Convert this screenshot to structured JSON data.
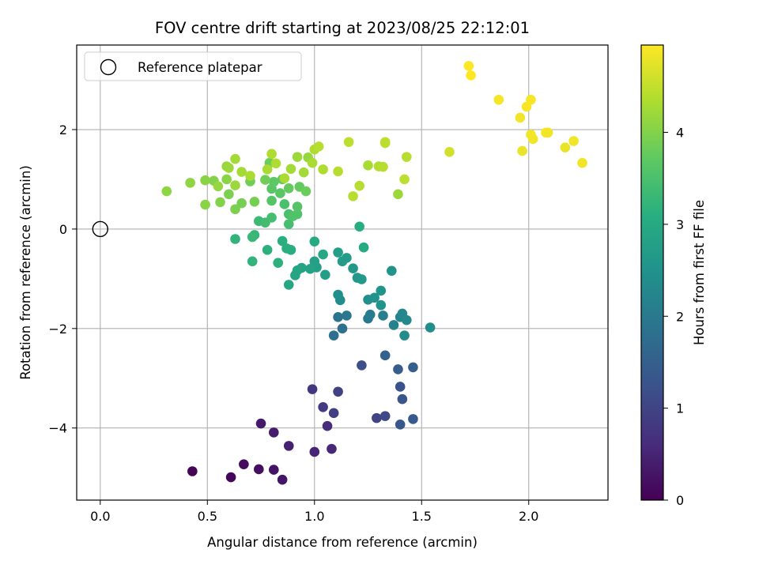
{
  "chart_data": {
    "type": "scatter",
    "title": "FOV centre drift starting at 2023/08/25 22:12:01",
    "xlabel": "Angular distance from reference (arcmin)",
    "ylabel": "Rotation from reference (arcmin)",
    "xlim": [
      -0.11,
      2.37
    ],
    "ylim": [
      -5.45,
      3.7
    ],
    "xticks": [
      0.0,
      0.5,
      1.0,
      1.5,
      2.0
    ],
    "xtick_labels": [
      "0.0",
      "0.5",
      "1.0",
      "1.5",
      "2.0"
    ],
    "yticks": [
      2,
      0,
      -2,
      -4
    ],
    "ytick_labels": [
      "2",
      "0",
      "−2",
      "−4"
    ],
    "grid": true,
    "legend": {
      "placement": "top-left",
      "entries": [
        "Reference platepar"
      ]
    },
    "reference_point": {
      "x": 0.0,
      "y": 0.0
    },
    "colorbar": {
      "label": "Hours from first FF file",
      "colormap": "viridis",
      "range": [
        0,
        4.95
      ],
      "ticks": [
        0,
        1,
        2,
        3,
        4
      ],
      "tick_labels": [
        "0",
        "1",
        "2",
        "3",
        "4"
      ]
    },
    "points": [
      [
        0.43,
        -4.87,
        0.05
      ],
      [
        0.61,
        -4.99,
        0.1
      ],
      [
        0.67,
        -4.73,
        0.15
      ],
      [
        0.74,
        -4.83,
        0.2
      ],
      [
        0.81,
        -4.84,
        0.25
      ],
      [
        0.85,
        -5.04,
        0.3
      ],
      [
        0.75,
        -3.91,
        0.35
      ],
      [
        0.81,
        -4.09,
        0.4
      ],
      [
        0.88,
        -4.36,
        0.45
      ],
      [
        1.0,
        -4.48,
        0.5
      ],
      [
        1.08,
        -4.42,
        0.55
      ],
      [
        1.06,
        -3.96,
        0.6
      ],
      [
        0.99,
        -3.22,
        0.8
      ],
      [
        1.04,
        -3.58,
        0.85
      ],
      [
        1.09,
        -3.7,
        0.9
      ],
      [
        1.11,
        -3.27,
        0.95
      ],
      [
        1.29,
        -3.8,
        1.0
      ],
      [
        1.33,
        -3.76,
        1.05
      ],
      [
        1.22,
        -2.74,
        1.2
      ],
      [
        1.4,
        -3.17,
        1.25
      ],
      [
        1.41,
        -3.42,
        1.3
      ],
      [
        1.4,
        -3.93,
        1.35
      ],
      [
        1.46,
        -3.82,
        1.4
      ],
      [
        1.39,
        -2.82,
        1.45
      ],
      [
        1.46,
        -2.78,
        1.5
      ],
      [
        1.33,
        -2.54,
        1.55
      ],
      [
        1.09,
        -2.14,
        1.8
      ],
      [
        1.13,
        -2.0,
        1.85
      ],
      [
        1.11,
        -1.77,
        1.9
      ],
      [
        1.15,
        -1.74,
        1.95
      ],
      [
        1.25,
        -1.8,
        2.0
      ],
      [
        1.26,
        -1.72,
        2.05
      ],
      [
        1.32,
        -1.74,
        2.1
      ],
      [
        1.37,
        -1.93,
        2.15
      ],
      [
        1.4,
        -1.77,
        2.2
      ],
      [
        1.41,
        -1.7,
        2.25
      ],
      [
        1.43,
        -1.83,
        2.3
      ],
      [
        1.42,
        -2.14,
        2.35
      ],
      [
        1.54,
        -1.98,
        2.4
      ],
      [
        1.12,
        -1.43,
        2.4
      ],
      [
        1.11,
        -1.32,
        2.45
      ],
      [
        1.25,
        -1.42,
        2.45
      ],
      [
        1.28,
        -1.38,
        2.5
      ],
      [
        1.31,
        -1.53,
        2.5
      ],
      [
        1.31,
        -1.24,
        2.55
      ],
      [
        1.36,
        -0.84,
        2.55
      ],
      [
        1.18,
        -0.79,
        2.6
      ],
      [
        1.2,
        -0.98,
        2.6
      ],
      [
        1.22,
        -1.01,
        2.65
      ],
      [
        1.15,
        -0.58,
        2.7
      ],
      [
        1.13,
        -0.65,
        2.7
      ],
      [
        1.11,
        -0.47,
        2.75
      ],
      [
        1.05,
        -0.92,
        2.75
      ],
      [
        1.01,
        -0.77,
        2.8
      ],
      [
        1.0,
        -0.65,
        2.8
      ],
      [
        0.98,
        -0.8,
        2.85
      ],
      [
        0.94,
        -0.78,
        2.85
      ],
      [
        0.92,
        -0.83,
        2.9
      ],
      [
        0.91,
        -0.93,
        2.9
      ],
      [
        0.88,
        -1.12,
        2.95
      ],
      [
        1.04,
        -0.51,
        2.95
      ],
      [
        1.0,
        -0.25,
        3.0
      ],
      [
        1.23,
        -0.37,
        3.0
      ],
      [
        1.21,
        0.05,
        3.05
      ],
      [
        0.89,
        -0.42,
        3.05
      ],
      [
        0.87,
        -0.39,
        3.1
      ],
      [
        0.85,
        -0.24,
        3.1
      ],
      [
        0.83,
        -0.68,
        3.15
      ],
      [
        0.78,
        -0.42,
        3.15
      ],
      [
        0.71,
        -0.65,
        3.2
      ],
      [
        0.63,
        -0.2,
        3.2
      ],
      [
        0.72,
        -0.12,
        3.25
      ],
      [
        0.71,
        -0.16,
        3.3
      ],
      [
        0.74,
        0.16,
        3.35
      ],
      [
        0.77,
        0.13,
        3.4
      ],
      [
        0.8,
        0.23,
        3.45
      ],
      [
        0.88,
        0.1,
        3.45
      ],
      [
        0.88,
        0.3,
        3.5
      ],
      [
        0.86,
        0.5,
        3.5
      ],
      [
        0.9,
        0.26,
        3.55
      ],
      [
        0.92,
        0.3,
        3.55
      ],
      [
        0.92,
        0.45,
        3.6
      ],
      [
        0.8,
        0.57,
        3.6
      ],
      [
        0.84,
        0.72,
        3.65
      ],
      [
        0.8,
        0.81,
        3.65
      ],
      [
        0.81,
        0.95,
        3.7
      ],
      [
        0.85,
        1.0,
        3.7
      ],
      [
        0.88,
        0.82,
        3.75
      ],
      [
        0.93,
        0.85,
        3.75
      ],
      [
        0.96,
        0.76,
        3.8
      ],
      [
        0.79,
        1.33,
        3.8
      ],
      [
        0.77,
        0.99,
        3.85
      ],
      [
        0.7,
        0.96,
        3.85
      ],
      [
        0.72,
        0.55,
        3.9
      ],
      [
        0.66,
        0.52,
        3.9
      ],
      [
        0.63,
        0.4,
        3.95
      ],
      [
        0.6,
        0.7,
        3.95
      ],
      [
        0.56,
        0.54,
        4.0
      ],
      [
        0.53,
        0.97,
        4.0
      ],
      [
        0.49,
        0.98,
        4.05
      ],
      [
        0.49,
        0.49,
        4.05
      ],
      [
        0.42,
        0.93,
        4.1
      ],
      [
        0.31,
        0.76,
        4.1
      ],
      [
        0.55,
        0.86,
        4.15
      ],
      [
        0.59,
        1.26,
        4.15
      ],
      [
        0.63,
        0.88,
        4.2
      ],
      [
        0.6,
        1.23,
        4.2
      ],
      [
        0.63,
        1.41,
        4.25
      ],
      [
        0.66,
        1.15,
        4.25
      ],
      [
        0.7,
        1.07,
        4.3
      ],
      [
        0.78,
        1.2,
        4.3
      ],
      [
        0.8,
        1.51,
        4.35
      ],
      [
        0.82,
        1.32,
        4.35
      ],
      [
        0.86,
        1.02,
        4.3
      ],
      [
        0.89,
        1.21,
        4.25
      ],
      [
        0.92,
        1.45,
        4.2
      ],
      [
        0.95,
        1.14,
        4.25
      ],
      [
        0.97,
        1.44,
        4.15
      ],
      [
        0.99,
        1.33,
        4.3
      ],
      [
        1.0,
        1.6,
        4.35
      ],
      [
        1.02,
        1.66,
        4.4
      ],
      [
        1.04,
        1.2,
        4.35
      ],
      [
        1.11,
        1.16,
        4.4
      ],
      [
        1.16,
        1.75,
        4.45
      ],
      [
        1.18,
        0.66,
        4.4
      ],
      [
        1.21,
        0.87,
        4.4
      ],
      [
        1.25,
        1.28,
        4.3
      ],
      [
        1.3,
        1.26,
        4.35
      ],
      [
        1.32,
        1.25,
        4.4
      ],
      [
        1.33,
        1.73,
        4.4
      ],
      [
        1.33,
        1.75,
        4.45
      ],
      [
        1.42,
        1.0,
        4.45
      ],
      [
        1.43,
        1.45,
        4.4
      ],
      [
        1.63,
        1.55,
        4.6
      ],
      [
        1.39,
        0.7,
        4.2
      ],
      [
        0.59,
        1.0,
        4.05
      ],
      [
        1.72,
        3.28,
        4.95
      ],
      [
        1.73,
        3.09,
        4.95
      ],
      [
        1.86,
        2.6,
        4.9
      ],
      [
        1.96,
        2.24,
        4.85
      ],
      [
        1.97,
        1.57,
        4.8
      ],
      [
        1.99,
        2.46,
        4.9
      ],
      [
        2.01,
        2.6,
        4.9
      ],
      [
        2.01,
        1.9,
        4.85
      ],
      [
        2.02,
        1.81,
        4.85
      ],
      [
        2.08,
        1.94,
        4.9
      ],
      [
        2.09,
        1.94,
        4.85
      ],
      [
        2.17,
        1.64,
        4.8
      ],
      [
        2.21,
        1.77,
        4.85
      ],
      [
        2.25,
        1.33,
        4.85
      ]
    ]
  }
}
